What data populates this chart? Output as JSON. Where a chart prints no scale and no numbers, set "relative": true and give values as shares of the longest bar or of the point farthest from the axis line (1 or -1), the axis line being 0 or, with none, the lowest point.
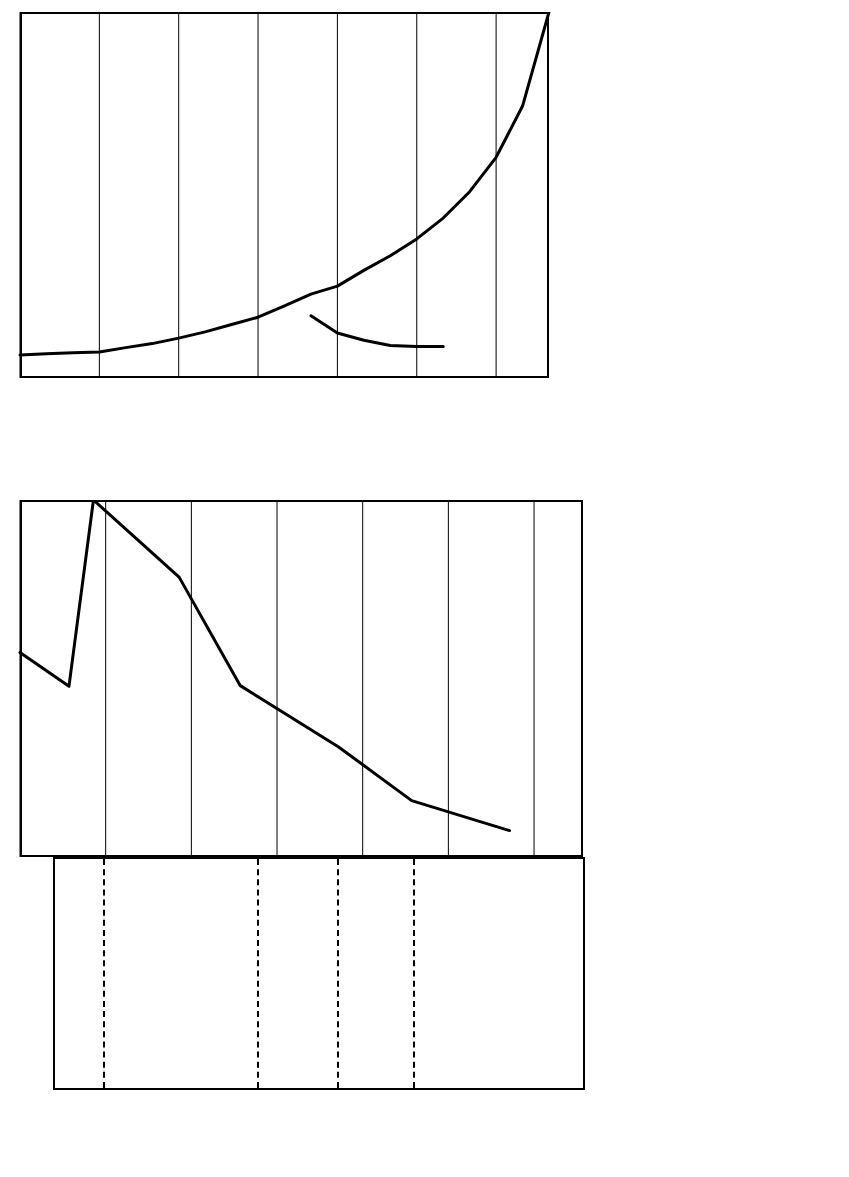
{
  "chart_data": [
    {
      "type": "line",
      "relative": true,
      "grid": "x",
      "marker": "none",
      "line_style": "solid",
      "categories": [
        null,
        null,
        null,
        null,
        null,
        null,
        null,
        null,
        null,
        null,
        null,
        null,
        null,
        null,
        null,
        null,
        null,
        null,
        null,
        null,
        null
      ],
      "series": [
        {
          "color": "#000000",
          "values": [
            0.063,
            0.066,
            0.069,
            0.071,
            0.083,
            0.094,
            0.109,
            0.126,
            0.146,
            0.166,
            0.197,
            0.229,
            0.251,
            0.294,
            0.334,
            0.38,
            0.437,
            0.509,
            0.603,
            0.743,
            1.0
          ]
        },
        {
          "color": "#000000",
          "values": [
            null,
            null,
            null,
            null,
            null,
            null,
            null,
            null,
            null,
            null,
            null,
            0.17,
            0.123,
            0.103,
            0.089,
            0.086,
            0.086,
            null,
            null,
            null,
            null
          ]
        }
      ]
    },
    {
      "type": "line",
      "relative": true,
      "grid": "x",
      "marker": "none",
      "line_style": "solid",
      "categories": [
        null,
        null,
        null,
        null,
        null,
        null,
        null,
        null,
        null,
        null,
        null,
        null,
        null,
        null,
        null,
        null,
        null,
        null,
        null,
        null,
        null,
        null,
        null,
        null,
        null,
        null,
        null,
        null,
        null,
        null,
        null,
        null,
        null,
        null,
        null,
        null,
        null,
        null,
        null,
        null,
        null,
        null,
        null,
        null,
        null,
        null,
        null
      ],
      "series": [
        {
          "color": "#000000",
          "values": [
            0.573,
            null,
            null,
            null,
            0.478,
            null,
            1.0,
            null,
            null,
            null,
            null,
            null,
            null,
            0.784,
            null,
            null,
            null,
            null,
            0.48,
            null,
            null,
            null,
            null,
            null,
            null,
            null,
            0.309,
            null,
            null,
            null,
            null,
            null,
            0.158,
            null,
            null,
            null,
            null,
            null,
            null,
            null,
            0.074,
            null,
            null,
            null,
            null,
            null,
            null
          ]
        }
      ]
    }
  ]
}
